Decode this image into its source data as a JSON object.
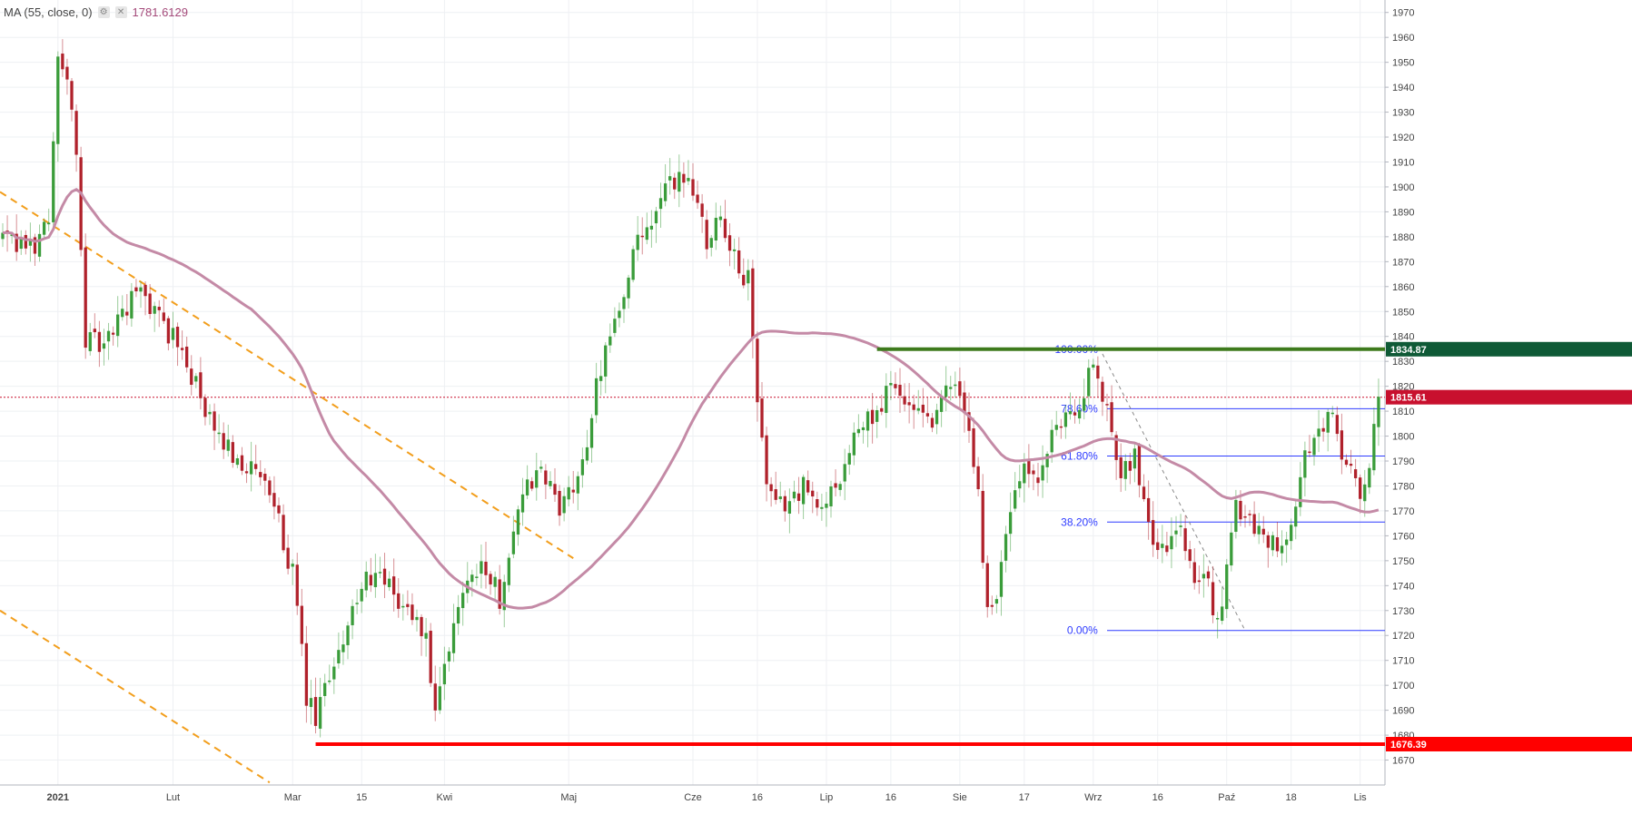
{
  "legend": {
    "indicator": "MA (55, close, 0)",
    "value": "1781.6129",
    "settings_icon": "gear-icon",
    "close_icon": "close-icon"
  },
  "colors": {
    "up": "#3a9c3a",
    "down": "#b0212b",
    "ma": "#c48aa6",
    "trend": "#f29e1c",
    "fib": "#2f3cff",
    "support": "#ff0000",
    "resistance": "#3e7a1d",
    "last_price": "#c8102e",
    "resistance_badge": "#0f5a36"
  },
  "chart_data": {
    "type": "candlestick",
    "title": "",
    "y_range": [
      1660,
      1975
    ],
    "y_ticks": [
      1670,
      1680,
      1690,
      1700,
      1710,
      1720,
      1730,
      1740,
      1750,
      1760,
      1770,
      1780,
      1790,
      1800,
      1810,
      1820,
      1830,
      1840,
      1850,
      1860,
      1870,
      1880,
      1890,
      1900,
      1910,
      1920,
      1930,
      1940,
      1950,
      1960,
      1970
    ],
    "x_labels": [
      {
        "i": 12,
        "label": "2021"
      },
      {
        "i": 37,
        "label": "Lut"
      },
      {
        "i": 63,
        "label": "Mar"
      },
      {
        "i": 78,
        "label": "15"
      },
      {
        "i": 96,
        "label": "Kwi"
      },
      {
        "i": 123,
        "label": "Maj"
      },
      {
        "i": 150,
        "label": "Cze"
      },
      {
        "i": 164,
        "label": "16"
      },
      {
        "i": 179,
        "label": "Lip"
      },
      {
        "i": 193,
        "label": "16"
      },
      {
        "i": 208,
        "label": "Sie"
      },
      {
        "i": 222,
        "label": "17"
      },
      {
        "i": 237,
        "label": "Wrz"
      },
      {
        "i": 251,
        "label": "16"
      },
      {
        "i": 266,
        "label": "Paź"
      },
      {
        "i": 280,
        "label": "18"
      },
      {
        "i": 295,
        "label": "Lis"
      }
    ],
    "ma_label": "MA (55, close, 0)",
    "ma_last": 1781.6129,
    "last_price_badge": "1815.61",
    "last_price": 1815.61,
    "resistance_badge": "1834.87",
    "resistance": 1834.87,
    "support_badge": "1676.39",
    "support": 1676.39,
    "fib_levels": [
      {
        "label": "100.00%",
        "price": 1834.87
      },
      {
        "label": "78.60%",
        "price": 1811.0
      },
      {
        "label": "61.80%",
        "price": 1792.0
      },
      {
        "label": "38.20%",
        "price": 1765.5
      },
      {
        "label": "0.00%",
        "price": 1722.0
      }
    ],
    "candles": []
  }
}
